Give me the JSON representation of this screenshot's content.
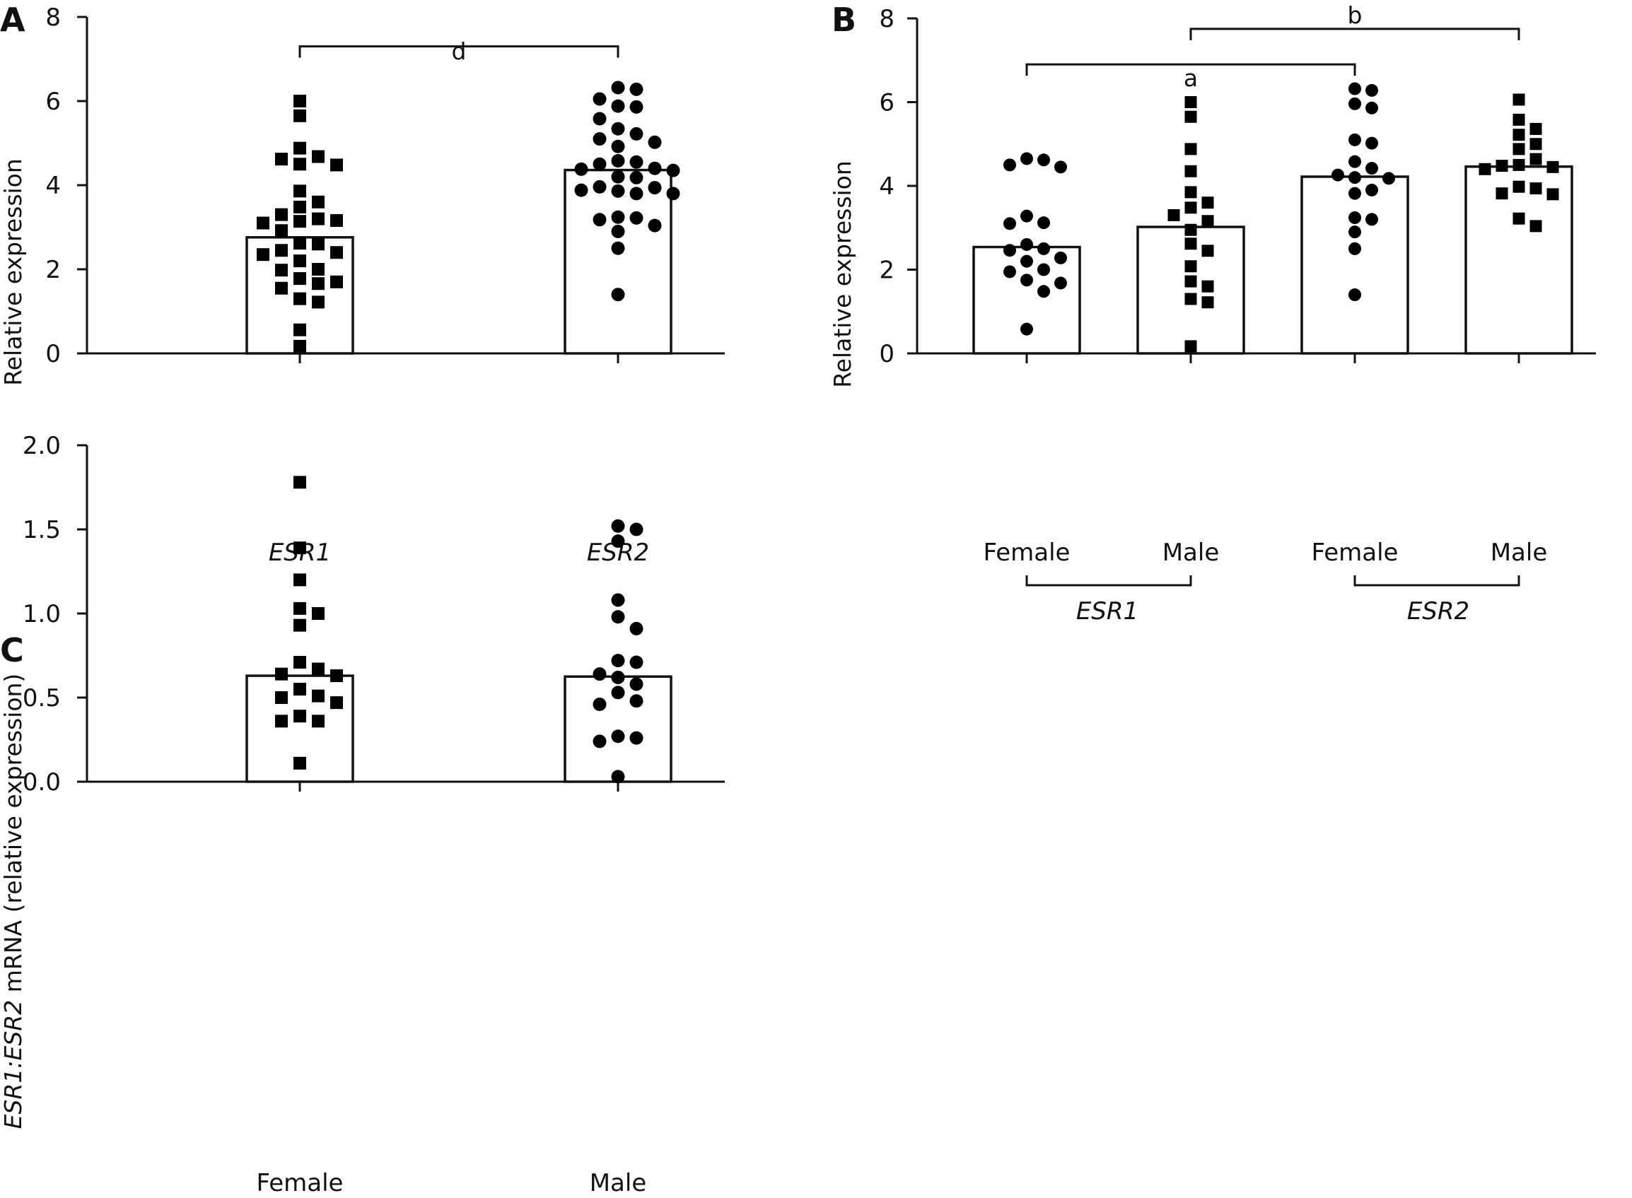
{
  "chart_data": [
    {
      "panel": "A",
      "type": "bar",
      "ylabel": "Relative expression",
      "ylim": [
        0,
        8
      ],
      "yticks": [
        "0",
        "2",
        "4",
        "6",
        "8"
      ],
      "categories": [
        "ESR1",
        "ESR2"
      ],
      "values": [
        2.76,
        4.36
      ],
      "marker": [
        "square",
        "circle"
      ],
      "points": [
        [
          6.0,
          5.65,
          4.88,
          4.68,
          4.62,
          4.5,
          4.48,
          3.86,
          3.6,
          3.48,
          3.3,
          3.2,
          3.16,
          3.14,
          3.1,
          2.92,
          2.62,
          2.6,
          2.45,
          2.4,
          2.35,
          2.2,
          2.0,
          1.98,
          1.78,
          1.7,
          1.66,
          1.55,
          1.3,
          1.22,
          0.56,
          0.17
        ],
        [
          6.32,
          6.28,
          6.05,
          5.88,
          5.86,
          5.58,
          5.34,
          5.22,
          5.1,
          5.02,
          4.92,
          4.58,
          4.55,
          4.5,
          4.4,
          4.38,
          4.35,
          4.2,
          4.18,
          3.96,
          3.94,
          3.88,
          3.86,
          3.8,
          3.8,
          3.24,
          3.22,
          3.18,
          3.04,
          2.9,
          2.5,
          1.4
        ]
      ],
      "significance": [
        {
          "label": "d",
          "from": 0,
          "to": 1,
          "y": 7.3
        }
      ]
    },
    {
      "panel": "B",
      "type": "bar",
      "ylabel": "Relative expression",
      "ylim": [
        0,
        8
      ],
      "yticks": [
        "0",
        "2",
        "4",
        "6",
        "8"
      ],
      "categories": [
        "Female",
        "Male",
        "Female",
        "Male"
      ],
      "groups": [
        {
          "label": "ESR1",
          "from": 0,
          "to": 1
        },
        {
          "label": "ESR2",
          "from": 2,
          "to": 3
        }
      ],
      "values": [
        2.54,
        3.02,
        4.22,
        4.46
      ],
      "marker": [
        "circle",
        "square",
        "circle",
        "square"
      ],
      "points": [
        [
          4.65,
          4.62,
          4.5,
          4.45,
          3.28,
          3.12,
          3.1,
          2.6,
          2.5,
          2.46,
          2.28,
          2.2,
          2.0,
          1.95,
          1.75,
          1.68,
          1.48,
          0.58
        ],
        [
          6.0,
          5.65,
          4.88,
          4.35,
          3.85,
          3.6,
          3.48,
          3.3,
          3.16,
          2.95,
          2.62,
          2.45,
          2.08,
          1.72,
          1.6,
          1.3,
          1.22,
          0.17
        ],
        [
          6.32,
          6.28,
          5.96,
          5.86,
          5.1,
          5.02,
          4.58,
          4.42,
          4.26,
          4.2,
          4.18,
          3.9,
          3.82,
          3.24,
          3.2,
          2.9,
          2.5,
          1.4
        ],
        [
          6.06,
          5.58,
          5.36,
          5.22,
          5.0,
          4.88,
          4.64,
          4.5,
          4.48,
          4.45,
          4.4,
          3.98,
          3.94,
          3.82,
          3.8,
          3.22,
          3.04
        ]
      ],
      "significance": [
        {
          "label": "a",
          "from": 0,
          "to": 2,
          "y": 6.9
        },
        {
          "label": "b",
          "from": 1,
          "to": 3,
          "y": 7.75
        }
      ]
    },
    {
      "panel": "C",
      "type": "bar",
      "ylabel_italic": "ESR1:ESR2",
      "ylabel_rest": " mRNA (relative expression)",
      "ylim": [
        0,
        2.0
      ],
      "yticks": [
        "0.0",
        "0.5",
        "1.0",
        "1.5",
        "2.0"
      ],
      "categories": [
        "Female",
        "Male"
      ],
      "values": [
        0.63,
        0.625
      ],
      "marker": [
        "square",
        "circle"
      ],
      "points": [
        [
          1.78,
          1.39,
          1.2,
          1.03,
          1.0,
          0.93,
          0.71,
          0.67,
          0.64,
          0.63,
          0.55,
          0.51,
          0.5,
          0.47,
          0.39,
          0.36,
          0.36,
          0.11
        ],
        [
          1.52,
          1.5,
          1.43,
          1.08,
          0.98,
          0.91,
          0.72,
          0.71,
          0.64,
          0.62,
          0.58,
          0.53,
          0.48,
          0.46,
          0.27,
          0.26,
          0.24,
          0.03
        ]
      ]
    }
  ]
}
